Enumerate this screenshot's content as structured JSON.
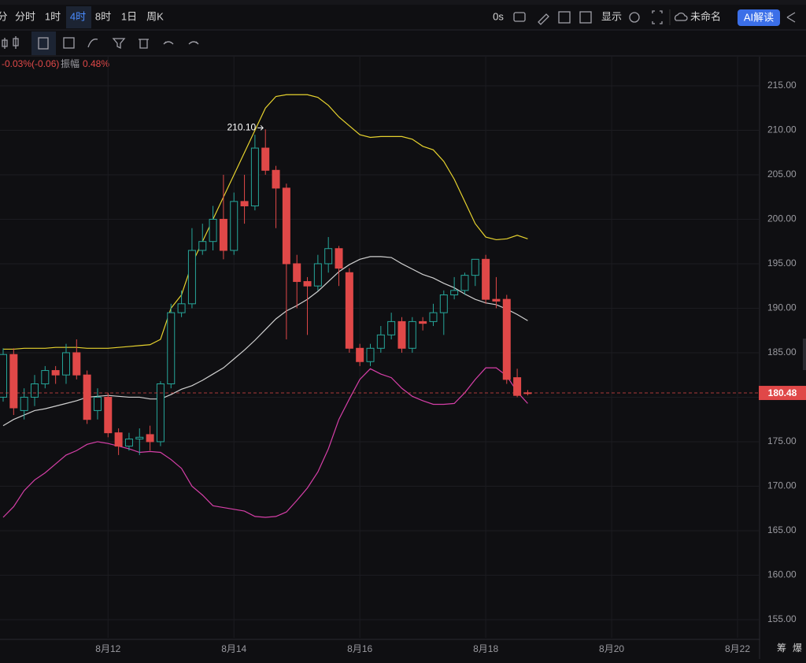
{
  "toolbar": {
    "intervals": [
      "分",
      "分时",
      "1时",
      "4时",
      "8时",
      "1日",
      "周K"
    ],
    "active": "4时",
    "timer": "0s",
    "display": "显示",
    "layout_name": "未命名",
    "ai_button": "AI解读"
  },
  "info": {
    "change": "-0.03%(-0.06)",
    "amplitude_label": "振幅",
    "amplitude": "0.48%"
  },
  "side_tabs": [
    "筹",
    "爆"
  ],
  "chart_data": {
    "type": "candlestick",
    "x": [
      0,
      1,
      2,
      3,
      4,
      5,
      6,
      7,
      8,
      9,
      10,
      11,
      12,
      13,
      14,
      15,
      16,
      17,
      18,
      19,
      20,
      21,
      22,
      23,
      24,
      25,
      26,
      27,
      28,
      29,
      30,
      31,
      32,
      33,
      34,
      35,
      36,
      37,
      38,
      39,
      40,
      41,
      42,
      43,
      44,
      45,
      46,
      47,
      48,
      49,
      50
    ],
    "open": [
      180,
      184.8,
      178.5,
      180,
      181.5,
      183,
      182.5,
      185,
      182.5,
      178.5,
      180,
      176,
      174.5,
      175.3,
      175.8,
      175,
      181.5,
      189.5,
      190.5,
      196.5,
      197.5,
      200,
      196.5,
      202,
      201.5,
      208,
      205.5,
      203.5,
      195,
      193,
      192.5,
      195,
      196.7,
      194,
      185.5,
      184,
      185.5,
      187,
      188.5,
      185.5,
      188.5,
      188.5,
      189.5,
      191.5,
      192,
      193.7,
      195.5,
      191,
      191,
      182.2,
      180.5
    ],
    "high": [
      185.5,
      185.5,
      181,
      182.5,
      183.5,
      183.5,
      186,
      186.5,
      183,
      181,
      180.5,
      176.5,
      176,
      176.5,
      176.8,
      181.8,
      190.5,
      192,
      199,
      199.5,
      201.5,
      205,
      203,
      205,
      209.5,
      210.1,
      206,
      204,
      196,
      193.5,
      196,
      198,
      197,
      194.5,
      186,
      186,
      188,
      189.5,
      189,
      189,
      189,
      190.5,
      192,
      193.5,
      194,
      195.5,
      196,
      193.5,
      191.5,
      183.2,
      180.8
    ],
    "low": [
      179.5,
      178,
      177.5,
      179,
      181,
      181.5,
      181.5,
      182,
      177,
      177.5,
      175.5,
      173.5,
      174,
      173.5,
      174,
      174.5,
      181,
      189,
      190,
      196,
      196.5,
      195.5,
      196,
      199.5,
      201,
      205,
      199,
      186.5,
      190,
      187,
      192,
      194,
      192.5,
      185,
      183.5,
      183.5,
      185,
      186.5,
      185,
      185,
      187.5,
      188,
      187,
      191,
      191.5,
      192.5,
      190.5,
      190,
      181.5,
      180,
      180.2
    ],
    "close": [
      184.8,
      178.8,
      180,
      181.5,
      183,
      182.5,
      185,
      182.5,
      177.5,
      180,
      176,
      174.5,
      175.3,
      175.5,
      175,
      181.5,
      189.5,
      190.5,
      196.5,
      197.5,
      200,
      196.5,
      202,
      201.5,
      208,
      205.5,
      203.5,
      195,
      193,
      192.5,
      195,
      196.7,
      194.5,
      185.5,
      184,
      185.5,
      187,
      188.5,
      185.5,
      188.5,
      188.3,
      189.5,
      191.5,
      192,
      193.7,
      195.5,
      191,
      190.8,
      182,
      180.2,
      180.48
    ],
    "up_color": "#26a69a",
    "down_color": "#e04848",
    "lines": [
      {
        "color": "#e6d22e",
        "values": [
          185.4,
          185.4,
          185.5,
          185.5,
          185.5,
          185.6,
          185.6,
          185.6,
          185.5,
          185.5,
          185.5,
          185.6,
          185.7,
          185.8,
          185.9,
          186.5,
          190,
          191.5,
          195,
          197.5,
          200,
          202.5,
          205,
          207.5,
          210,
          212.5,
          213.8,
          214,
          214,
          214,
          213.7,
          212.8,
          211.5,
          210.5,
          209.5,
          209.2,
          209.3,
          209.3,
          209.3,
          209,
          208.2,
          207.8,
          206.5,
          204.5,
          202,
          199.5,
          198,
          197.7,
          197.8,
          198.2,
          197.8
        ]
      },
      {
        "color": "#d0d0d0",
        "values": [
          176.8,
          177.5,
          178,
          178.5,
          178.7,
          179,
          179.3,
          179.6,
          180,
          180.1,
          180.2,
          180.1,
          180,
          180,
          179.8,
          179.8,
          180.3,
          180.9,
          181.3,
          181.9,
          182.6,
          183.3,
          184.3,
          185.3,
          186.4,
          187.6,
          188.8,
          189.7,
          190.3,
          191,
          191.9,
          193,
          194.1,
          194.9,
          195.5,
          195.8,
          195.8,
          195.7,
          195,
          194.4,
          193.8,
          193.4,
          192.8,
          192.3,
          191.6,
          191,
          190.6,
          190.4,
          189.9,
          189.3,
          188.6
        ]
      },
      {
        "color": "#d63fa8",
        "values": [
          166.5,
          167.7,
          169.5,
          170.7,
          171.5,
          172.5,
          173.5,
          174,
          174.7,
          175,
          174.8,
          174.5,
          174.2,
          173.8,
          173.9,
          173.8,
          173,
          172,
          170,
          169,
          167.8,
          167.6,
          167.4,
          167.2,
          166.6,
          166.5,
          166.6,
          167.1,
          168.4,
          169.8,
          171.6,
          174.2,
          177.5,
          179.8,
          182,
          183.2,
          182.6,
          182.2,
          181,
          180.1,
          179.6,
          179.2,
          179.2,
          179.3,
          180.5,
          182,
          183.3,
          183.3,
          182.4,
          180.6,
          179.3
        ]
      }
    ],
    "max_label": "210.10",
    "last_price_label": "180.48",
    "xlim": [
      -0.3,
      72.1
    ],
    "xticks": [
      {
        "value": 10,
        "label": "8月12"
      },
      {
        "value": 22,
        "label": "8月14"
      },
      {
        "value": 34,
        "label": "8月16"
      },
      {
        "value": 46,
        "label": "8月18"
      },
      {
        "value": 58,
        "label": "8月20"
      },
      {
        "value": 70,
        "label": "8月22"
      }
    ],
    "ylim": [
      152.96,
      218.27
    ],
    "yticks": [
      {
        "value": 155,
        "label": "155.00"
      },
      {
        "value": 160,
        "label": "160.00"
      },
      {
        "value": 165,
        "label": "165.00"
      },
      {
        "value": 170,
        "label": "170.00"
      },
      {
        "value": 175,
        "label": "175.00"
      },
      {
        "value": 180,
        "label": "180.00"
      },
      {
        "value": 185,
        "label": "185.00"
      },
      {
        "value": 190,
        "label": "190.00"
      },
      {
        "value": 195,
        "label": "195.00"
      },
      {
        "value": 200,
        "label": "200.00"
      },
      {
        "value": 205,
        "label": "205.00"
      },
      {
        "value": 210,
        "label": "210.00"
      },
      {
        "value": 215,
        "label": "215.00"
      }
    ],
    "grid": true
  }
}
